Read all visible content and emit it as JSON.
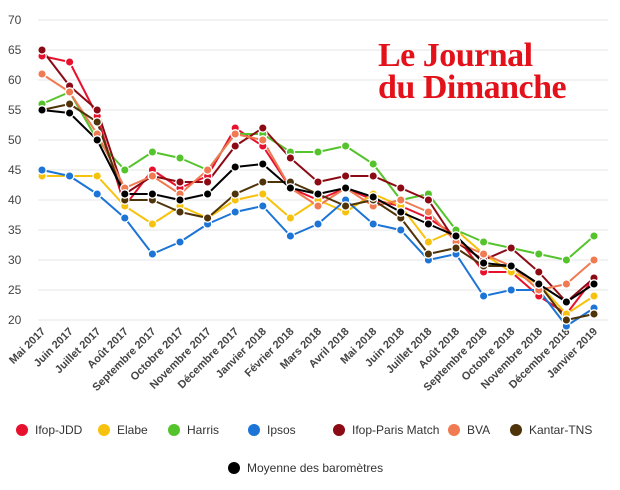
{
  "chart_data": {
    "type": "line",
    "title": "",
    "xlabel": "",
    "ylabel": "",
    "ylim": [
      20,
      70
    ],
    "yticks": [
      20,
      25,
      30,
      35,
      40,
      45,
      50,
      55,
      60,
      65,
      70
    ],
    "grid": true,
    "legend_position": "bottom",
    "categories": [
      "Mai 2017",
      "Juin 2017",
      "Juillet 2017",
      "Août 2017",
      "Septembre 2017",
      "Octobre 2017",
      "Novembre 2017",
      "Décembre 2017",
      "Janvier 2018",
      "Février 2018",
      "Mars 2018",
      "Avril 2018",
      "Mai 2018",
      "Juin 2018",
      "Juillet 2018",
      "Août 2018",
      "Septembre 2018",
      "Octobre 2018",
      "Novembre 2018",
      "Décembre 2018",
      "Janvier 2019"
    ],
    "series": [
      {
        "name": "Ifop-JDD",
        "color": "#e8112d",
        "values": [
          64,
          63,
          54,
          39,
          45,
          42,
          44,
          52,
          49,
          42,
          40,
          42,
          40,
          39,
          37,
          34,
          28,
          28,
          24,
          21,
          27
        ]
      },
      {
        "name": "Elabe",
        "color": "#f7c20e",
        "values": [
          44,
          44,
          44,
          39,
          36,
          39,
          37,
          40,
          41,
          37,
          40,
          38,
          41,
          39,
          33,
          35,
          31,
          28,
          26,
          21,
          24
        ]
      },
      {
        "name": "Harris",
        "color": "#55c32c",
        "values": [
          56,
          58,
          50,
          45,
          48,
          47,
          45,
          51,
          51,
          48,
          48,
          49,
          46,
          40,
          41,
          35,
          33,
          32,
          31,
          30,
          34
        ]
      },
      {
        "name": "Ipsos",
        "color": "#1b74d6",
        "values": [
          45,
          44,
          41,
          37,
          31,
          33,
          36,
          38,
          39,
          34,
          36,
          40,
          36,
          35,
          30,
          31,
          24,
          25,
          25,
          19,
          22
        ]
      },
      {
        "name": "Ifop-Paris Match",
        "color": "#8b0a14",
        "values": [
          65,
          59,
          55,
          41,
          44,
          43,
          43,
          49,
          52,
          47,
          43,
          44,
          44,
          42,
          40,
          33,
          30,
          32,
          28,
          23,
          27
        ]
      },
      {
        "name": "BVA",
        "color": "#f07a52",
        "values": [
          61,
          58,
          51,
          42,
          44,
          41,
          45,
          51,
          50,
          42,
          39,
          42,
          39,
          40,
          38,
          33,
          31,
          29,
          25,
          26,
          30
        ]
      },
      {
        "name": "Kantar-TNS",
        "color": "#4f3309",
        "values": [
          55,
          56,
          53,
          40,
          40,
          38,
          37,
          41,
          43,
          43,
          41,
          39,
          40,
          37,
          31,
          32,
          29,
          29,
          26,
          20,
          21
        ]
      },
      {
        "name": "Moyenne des baromètres",
        "color": "#000000",
        "values": [
          55,
          54.5,
          50,
          41,
          41,
          40,
          41,
          45.5,
          46,
          42,
          41,
          42,
          40.5,
          38,
          36,
          34,
          29.5,
          29,
          26,
          23,
          26
        ]
      }
    ]
  },
  "logo": {
    "line1": "Le Journal",
    "line2": "du Dimanche",
    "color": "#e3111a"
  }
}
